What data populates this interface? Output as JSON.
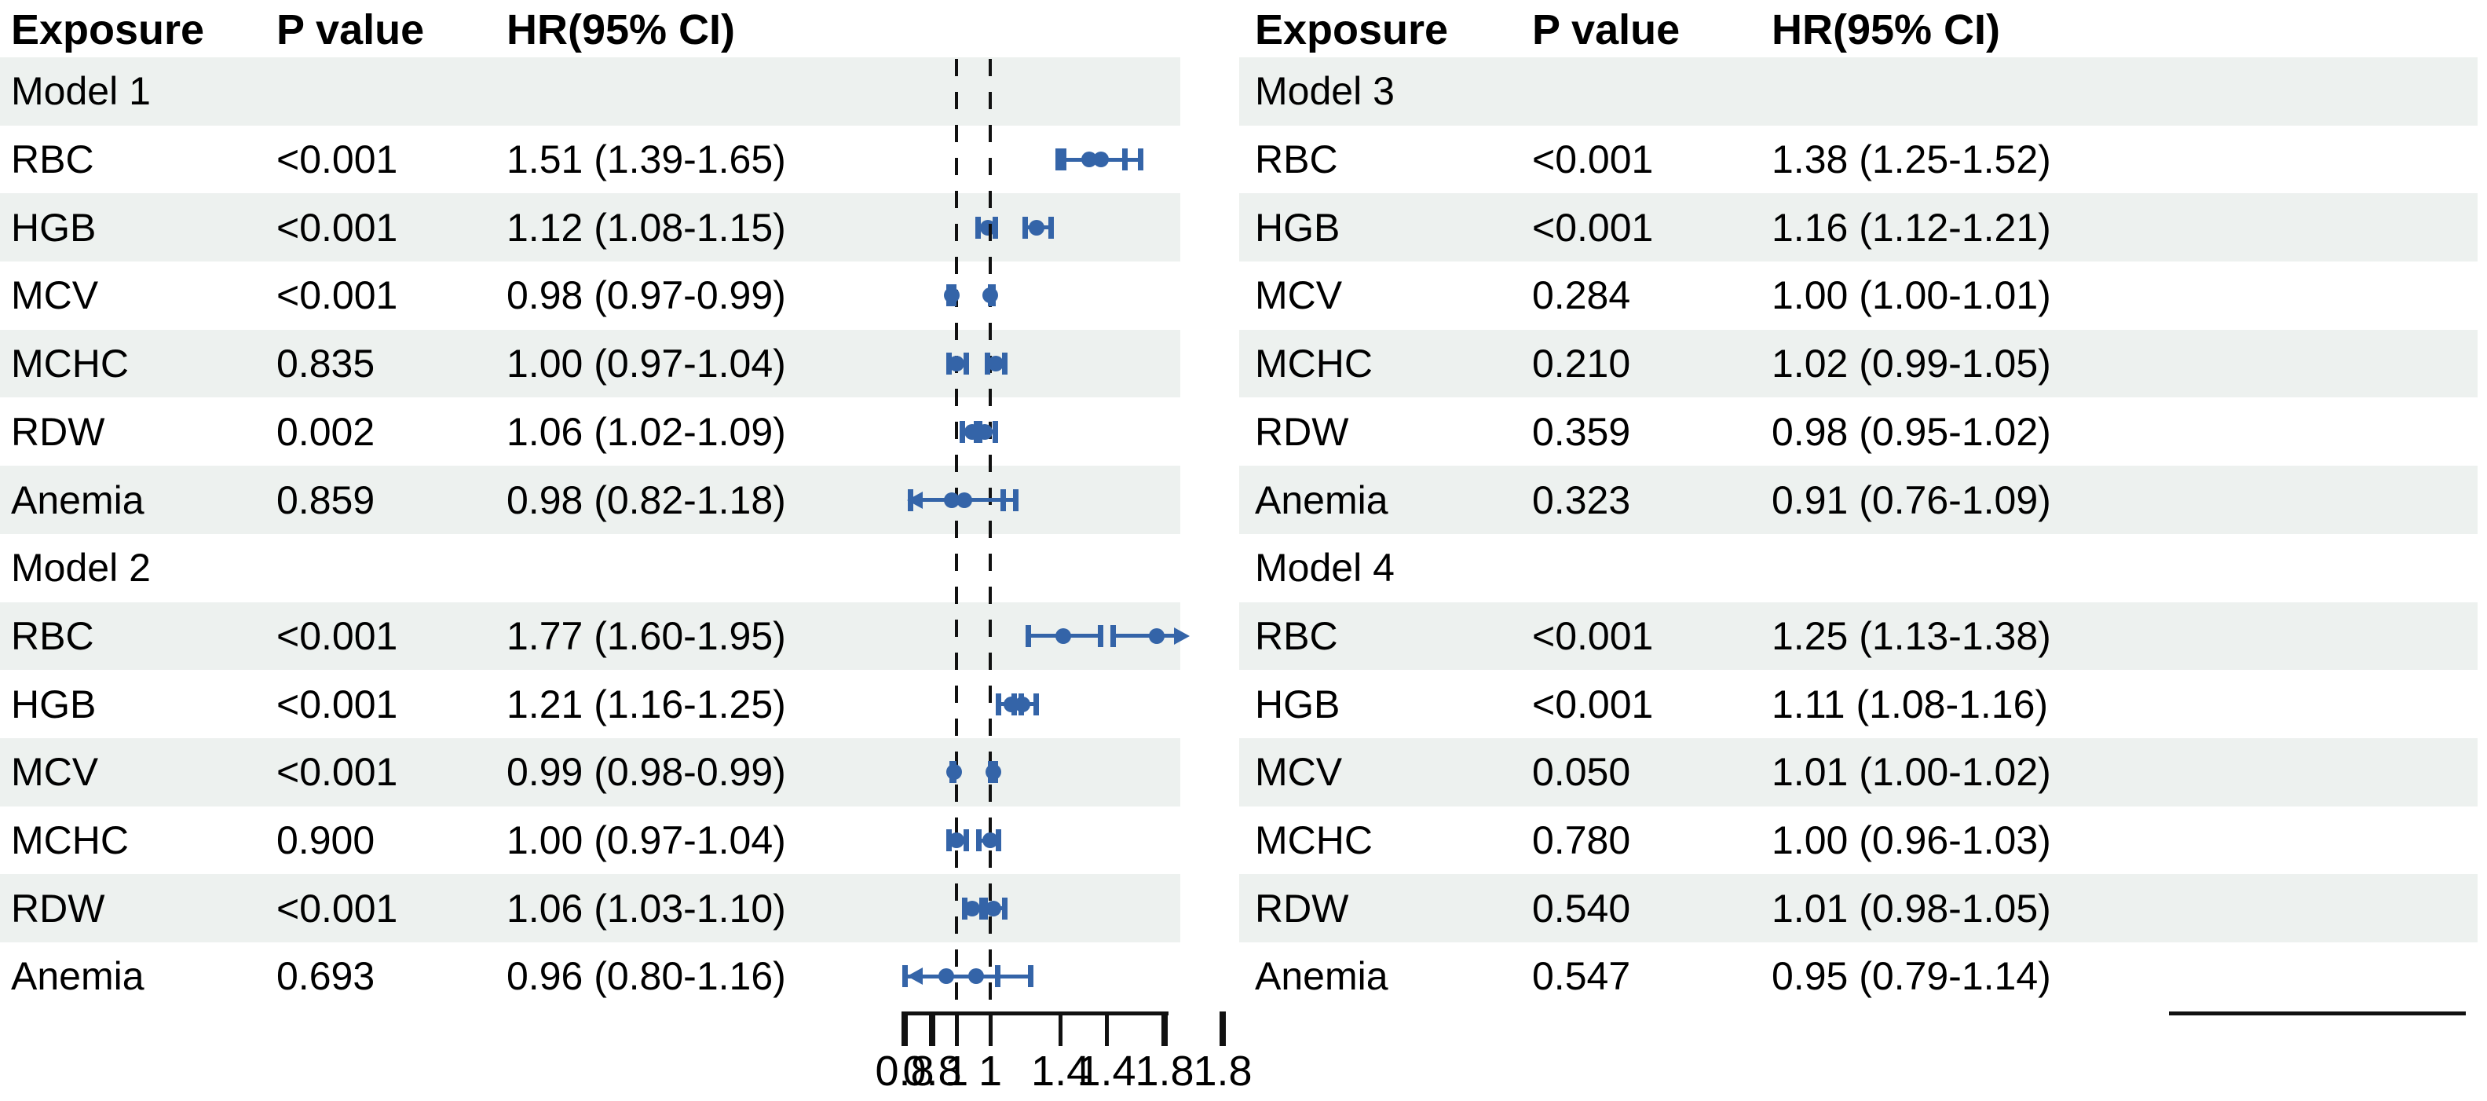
{
  "chart_data": {
    "type": "forest",
    "columns": [
      "Exposure",
      "P value",
      "HR(95% CI)"
    ],
    "axis": {
      "xmin": 0.8,
      "xmax": 1.8,
      "ticks": [
        0.8,
        1.0,
        1.4,
        1.8
      ],
      "tick_labels": [
        "0.8",
        "1",
        "1.4",
        "1.8"
      ],
      "reference_line": 1.0
    },
    "colors": {
      "marker_blue": "#3464a8",
      "stripe_gray": "#edf1ef",
      "axis_black": "#111111",
      "text_black": "#000000"
    },
    "panels": [
      {
        "id": "left",
        "rows": [
          {
            "type": "group",
            "label": "Model 1"
          },
          {
            "type": "data",
            "label": "RBC",
            "p": "<0.001",
            "hr": "1.51 (1.39-1.65)",
            "est": 1.51,
            "lo": 1.39,
            "hi": 1.65
          },
          {
            "type": "data",
            "label": "HGB",
            "p": "<0.001",
            "hr": "1.12 (1.08-1.15)",
            "est": 1.12,
            "lo": 1.08,
            "hi": 1.15
          },
          {
            "type": "data",
            "label": "MCV",
            "p": "<0.001",
            "hr": "0.98 (0.97-0.99)",
            "est": 0.98,
            "lo": 0.97,
            "hi": 0.99
          },
          {
            "type": "data",
            "label": "MCHC",
            "p": "0.835",
            "hr": "1.00 (0.97-1.04)",
            "est": 1.0,
            "lo": 0.97,
            "hi": 1.04
          },
          {
            "type": "data",
            "label": "RDW",
            "p": "0.002",
            "hr": "1.06 (1.02-1.09)",
            "est": 1.06,
            "lo": 1.02,
            "hi": 1.09
          },
          {
            "type": "data",
            "label": "Anemia",
            "p": "0.859",
            "hr": "0.98 (0.82-1.18)",
            "est": 0.98,
            "lo": 0.82,
            "hi": 1.18
          },
          {
            "type": "group",
            "label": "Model 2"
          },
          {
            "type": "data",
            "label": "RBC",
            "p": "<0.001",
            "hr": "1.77 (1.60-1.95)",
            "est": 1.77,
            "lo": 1.6,
            "hi": 1.95
          },
          {
            "type": "data",
            "label": "HGB",
            "p": "<0.001",
            "hr": "1.21 (1.16-1.25)",
            "est": 1.21,
            "lo": 1.16,
            "hi": 1.25
          },
          {
            "type": "data",
            "label": "MCV",
            "p": "<0.001",
            "hr": "0.99 (0.98-0.99)",
            "est": 0.99,
            "lo": 0.98,
            "hi": 0.99
          },
          {
            "type": "data",
            "label": "MCHC",
            "p": "0.900",
            "hr": "1.00 (0.97-1.04)",
            "est": 1.0,
            "lo": 0.97,
            "hi": 1.04
          },
          {
            "type": "data",
            "label": "RDW",
            "p": "<0.001",
            "hr": "1.06 (1.03-1.10)",
            "est": 1.06,
            "lo": 1.03,
            "hi": 1.1
          },
          {
            "type": "data",
            "label": "Anemia",
            "p": "0.693",
            "hr": "0.96 (0.80-1.16)",
            "est": 0.96,
            "lo": 0.8,
            "hi": 1.16
          }
        ]
      },
      {
        "id": "right",
        "rows": [
          {
            "type": "group",
            "label": "Model 3"
          },
          {
            "type": "data",
            "label": "RBC",
            "p": "<0.001",
            "hr": "1.38 (1.25-1.52)",
            "est": 1.38,
            "lo": 1.25,
            "hi": 1.52
          },
          {
            "type": "data",
            "label": "HGB",
            "p": "<0.001",
            "hr": "1.16 (1.12-1.21)",
            "est": 1.16,
            "lo": 1.12,
            "hi": 1.21
          },
          {
            "type": "data",
            "label": "MCV",
            "p": "0.284",
            "hr": "1.00 (1.00-1.01)",
            "est": 1.0,
            "lo": 1.0,
            "hi": 1.01
          },
          {
            "type": "data",
            "label": "MCHC",
            "p": "0.210",
            "hr": "1.02 (0.99-1.05)",
            "est": 1.02,
            "lo": 0.99,
            "hi": 1.05
          },
          {
            "type": "data",
            "label": "RDW",
            "p": "0.359",
            "hr": "0.98 (0.95-1.02)",
            "est": 0.98,
            "lo": 0.95,
            "hi": 1.02
          },
          {
            "type": "data",
            "label": "Anemia",
            "p": "0.323",
            "hr": "0.91 (0.76-1.09)",
            "est": 0.91,
            "lo": 0.76,
            "hi": 1.09
          },
          {
            "type": "group",
            "label": "Model 4"
          },
          {
            "type": "data",
            "label": "RBC",
            "p": "<0.001",
            "hr": "1.25 (1.13-1.38)",
            "est": 1.25,
            "lo": 1.13,
            "hi": 1.38
          },
          {
            "type": "data",
            "label": "HGB",
            "p": "<0.001",
            "hr": "1.11 (1.08-1.16)",
            "est": 1.11,
            "lo": 1.08,
            "hi": 1.16
          },
          {
            "type": "data",
            "label": "MCV",
            "p": "0.050",
            "hr": "1.01 (1.00-1.02)",
            "est": 1.01,
            "lo": 1.0,
            "hi": 1.02
          },
          {
            "type": "data",
            "label": "MCHC",
            "p": "0.780",
            "hr": "1.00 (0.96-1.03)",
            "est": 1.0,
            "lo": 0.96,
            "hi": 1.03
          },
          {
            "type": "data",
            "label": "RDW",
            "p": "0.540",
            "hr": "1.01 (0.98-1.05)",
            "est": 1.01,
            "lo": 0.98,
            "hi": 1.05
          },
          {
            "type": "data",
            "label": "Anemia",
            "p": "0.547",
            "hr": "0.95 (0.79-1.14)",
            "est": 0.95,
            "lo": 0.79,
            "hi": 1.14
          }
        ]
      }
    ]
  }
}
